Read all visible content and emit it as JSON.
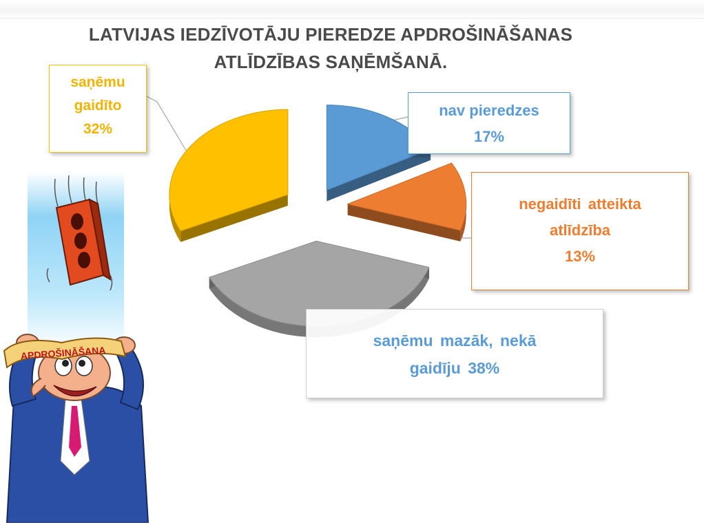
{
  "title": {
    "line1": "LATVIJAS IEDZĪVOTĀJU PIEREDZE APDROŠINĀŠANAS",
    "line2": "ATLĪDZĪBAS SAŅĒMŠANĀ."
  },
  "chart_data": {
    "type": "pie",
    "style": "3d-exploded",
    "slices": [
      {
        "label": "nav pieredzes",
        "value": 17,
        "value_text": "17%",
        "color": "#5b9bd5"
      },
      {
        "label": "negaidīti atteikta atlīdzība",
        "label_lines": [
          "negaidīti atteikta",
          "atlīdzība"
        ],
        "value": 13,
        "value_text": "13%",
        "color": "#ed7d31"
      },
      {
        "label": "saņēmu mazāk, nekā gaidīju",
        "label_lines": [
          "saņēmu mazāk, nekā",
          "gaidīju 38%"
        ],
        "value": 38,
        "value_text": "38%",
        "color": "#a5a5a5"
      },
      {
        "label": "saņēmu gaidīto",
        "label_lines": [
          "saņēmu",
          "gaidīto"
        ],
        "value": 32,
        "value_text": "32%",
        "color": "#ffc000"
      }
    ],
    "legend": "none",
    "data_labels": "callouts"
  },
  "illustration": {
    "banner_text": "APDROŠINĀŠANA"
  }
}
